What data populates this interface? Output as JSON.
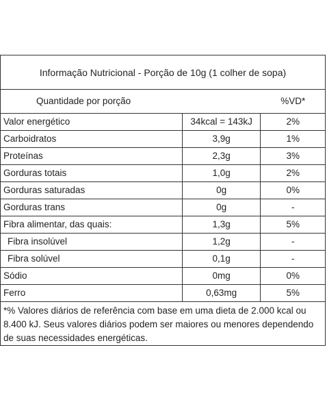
{
  "title": "Informação Nutricional - Porção de 10g (1 colher de sopa)",
  "header": {
    "quantity_label": "Quantidade por porção",
    "vd_label": "%VD*"
  },
  "rows": [
    {
      "label": "Valor energético",
      "quantity": "34kcal = 143kJ",
      "vd": "2%"
    },
    {
      "label": "Carboidratos",
      "quantity": "3,9g",
      "vd": "1%"
    },
    {
      "label": "Proteínas",
      "quantity": "2,3g",
      "vd": "3%"
    },
    {
      "label": "Gorduras totais",
      "quantity": "1,0g",
      "vd": "2%"
    },
    {
      "label": "Gorduras saturadas",
      "quantity": "0g",
      "vd": "0%"
    },
    {
      "label": "Gorduras trans",
      "quantity": "0g",
      "vd": "-"
    },
    {
      "label": "Fibra alimentar, das quais:",
      "quantity": "1,3g",
      "vd": "5%"
    },
    {
      "label": "Fibra insolúvel",
      "quantity": "1,2g",
      "vd": "-"
    },
    {
      "label": "Fibra solúvel",
      "quantity": "0,1g",
      "vd": "-"
    },
    {
      "label": "Sódio",
      "quantity": "0mg",
      "vd": "0%"
    },
    {
      "label": "Ferro",
      "quantity": "0,63mg",
      "vd": "5%"
    }
  ],
  "footnote": "*% Valores diários de referência com base em uma dieta de 2.000 kcal ou 8.400 kJ. Seus valores diários podem ser maiores ou menores dependendo de suas necessidades energéticas."
}
